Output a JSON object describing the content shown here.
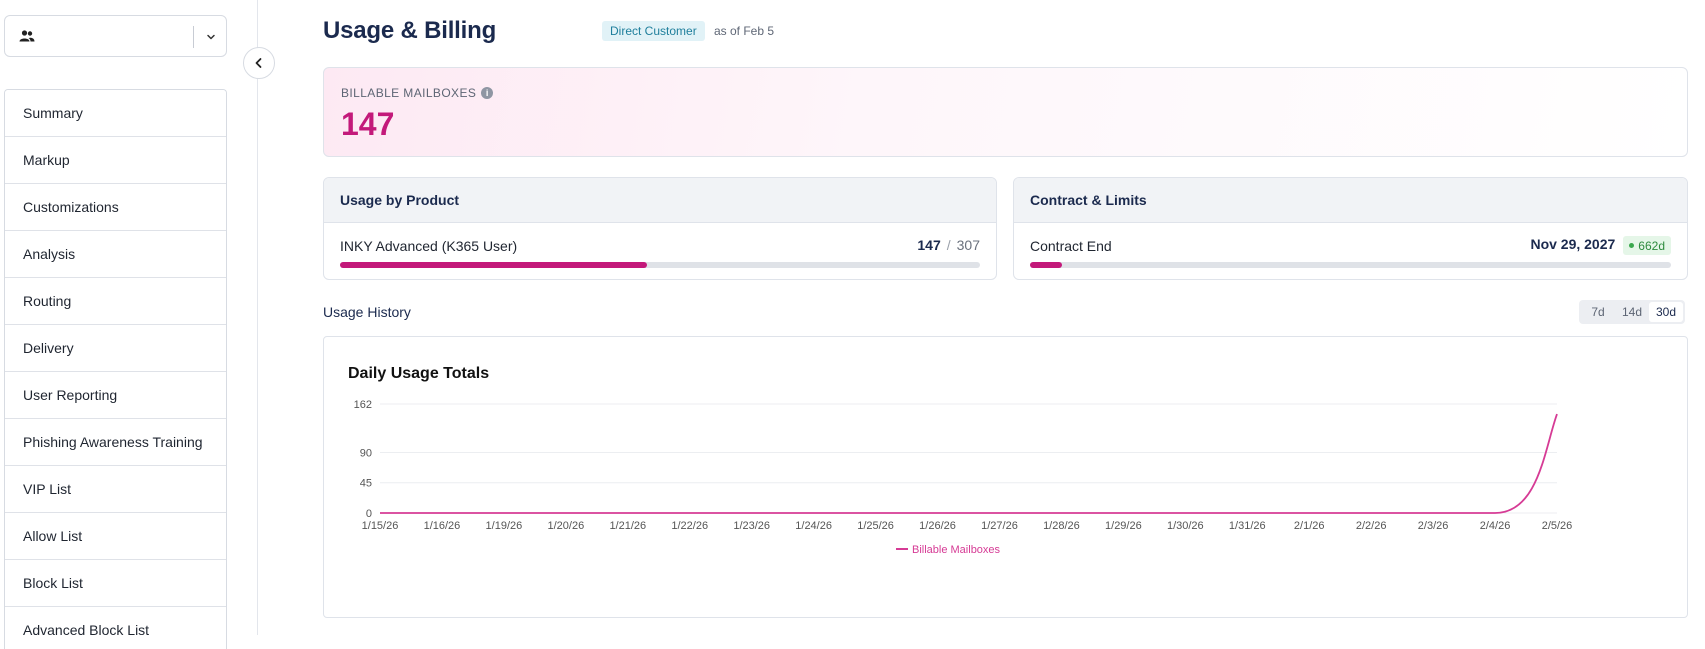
{
  "sidebar": {
    "items": [
      {
        "label": "Summary"
      },
      {
        "label": "Markup"
      },
      {
        "label": "Customizations"
      },
      {
        "label": "Analysis"
      },
      {
        "label": "Routing"
      },
      {
        "label": "Delivery"
      },
      {
        "label": "User Reporting"
      },
      {
        "label": "Phishing Awareness Training"
      },
      {
        "label": "VIP List"
      },
      {
        "label": "Allow List"
      },
      {
        "label": "Block List"
      },
      {
        "label": "Advanced Block List"
      }
    ]
  },
  "header": {
    "title": "Usage & Billing",
    "badge": "Direct Customer",
    "as_of": "as of Feb 5"
  },
  "billable": {
    "label": "BILLABLE MAILBOXES",
    "value": "147"
  },
  "usage_by_product": {
    "title": "Usage by Product",
    "product": "INKY Advanced (K365 User)",
    "used": "147",
    "total": "307",
    "progress": 0.479
  },
  "contract": {
    "title": "Contract & Limits",
    "label": "Contract End",
    "date": "Nov 29, 2027",
    "days_left": "662d",
    "progress": 0.05
  },
  "history": {
    "title": "Usage History",
    "ranges": [
      "7d",
      "14d",
      "30d"
    ],
    "selected_range": "30d"
  },
  "colors": {
    "accent": "#c3197a",
    "line": "#d63b95",
    "badge_bg": "#e1f2f7",
    "success": "#2e8b3e"
  },
  "chart_data": {
    "type": "line",
    "title": "Daily Usage Totals",
    "categories": [
      "1/15/26",
      "1/16/26",
      "1/19/26",
      "1/20/26",
      "1/21/26",
      "1/22/26",
      "1/23/26",
      "1/24/26",
      "1/25/26",
      "1/26/26",
      "1/27/26",
      "1/28/26",
      "1/29/26",
      "1/30/26",
      "1/31/26",
      "2/1/26",
      "2/2/26",
      "2/3/26",
      "2/4/26",
      "2/5/26"
    ],
    "y_ticks": [
      0,
      45,
      90,
      162
    ],
    "ylim": [
      0,
      162
    ],
    "series": [
      {
        "name": "Billable Mailboxes",
        "values": [
          0,
          0,
          0,
          0,
          0,
          0,
          0,
          0,
          0,
          0,
          0,
          0,
          0,
          0,
          0,
          0,
          0,
          0,
          0,
          147
        ]
      }
    ],
    "legend": "bottom-center",
    "grid": true
  }
}
